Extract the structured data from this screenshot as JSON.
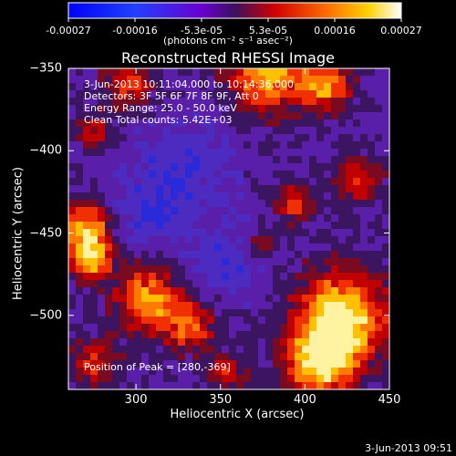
{
  "colorbar": {
    "tick_labels": [
      "-0.00027",
      "-0.00016",
      "-5.3e-05",
      "5.3e-05",
      "0.00016",
      "0.00027"
    ],
    "units": "(photons cm⁻² s⁻¹ asec⁻²)"
  },
  "chart_data": {
    "type": "heatmap",
    "title": "Reconstructed RHESSI Image",
    "xlabel": "Heliocentric X (arcsec)",
    "ylabel": "Heliocentric Y (arcsec)",
    "xlim": [
      260,
      450
    ],
    "ylim": [
      -545,
      -350
    ],
    "x_ticks": [
      300,
      350,
      400,
      450
    ],
    "y_ticks": [
      -350,
      -400,
      -450,
      -500
    ],
    "color_range": [
      -0.00027,
      0.00027
    ],
    "peak": [
      280,
      -369
    ],
    "annotations": {
      "time_range": "3-Jun-2013 10:11:04.000 to 10:14:36.000",
      "detectors": "Detectors: 3F 5F 6F 7F 8F 9F, Att 0",
      "energy": "Energy Range: 25.0 - 50.0 keV",
      "clean": "Clean    Total counts: 5.42E+03",
      "peak_text": "Position of Peak = [280,-369]"
    }
  },
  "footer": {
    "date": "3-Jun-2013 09:51"
  }
}
